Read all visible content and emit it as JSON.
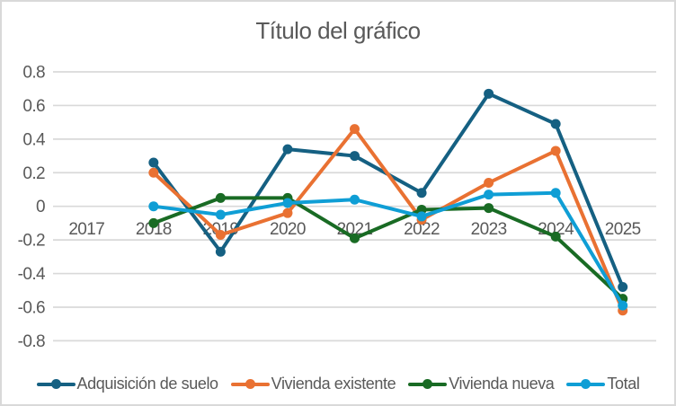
{
  "chart_data": {
    "type": "line",
    "title": "Título del gráfico",
    "categories": [
      "2017",
      "2018",
      "2019",
      "2020",
      "2021",
      "2022",
      "2023",
      "2024",
      "2025"
    ],
    "series": [
      {
        "name": "Adquisición de suelo",
        "color": "#156082",
        "values": [
          null,
          0.26,
          -0.27,
          0.34,
          0.3,
          0.08,
          0.67,
          0.49,
          -0.48
        ]
      },
      {
        "name": "Vivienda existente",
        "color": "#E97132",
        "values": [
          null,
          0.2,
          -0.17,
          -0.04,
          0.46,
          -0.08,
          0.14,
          0.33,
          -0.62
        ]
      },
      {
        "name": "Vivienda nueva",
        "color": "#196B24",
        "values": [
          null,
          -0.1,
          0.05,
          0.05,
          -0.19,
          -0.02,
          -0.01,
          -0.18,
          -0.55
        ]
      },
      {
        "name": "Total",
        "color": "#0F9ED5",
        "values": [
          null,
          0.0,
          -0.05,
          0.02,
          0.04,
          -0.06,
          0.07,
          0.08,
          -0.59
        ]
      }
    ],
    "y_axis": {
      "min": -0.8,
      "max": 0.8,
      "step": 0.2,
      "tick_labels": [
        "0.8",
        "0.6",
        "0.4",
        "0.2",
        "0",
        "-0.2",
        "-0.4",
        "-0.6",
        "-0.8"
      ]
    },
    "x_axis": {
      "tick_labels": [
        "2017",
        "2018",
        "2019",
        "2020",
        "2021",
        "2022",
        "2023",
        "2024",
        "2025"
      ]
    },
    "grid": true,
    "legend_position": "bottom",
    "marker": "circle",
    "colors": {
      "text": "#595959",
      "gridline": "#D9D9D9",
      "border": "#D9D9D9",
      "background": "#FFFFFF"
    }
  }
}
